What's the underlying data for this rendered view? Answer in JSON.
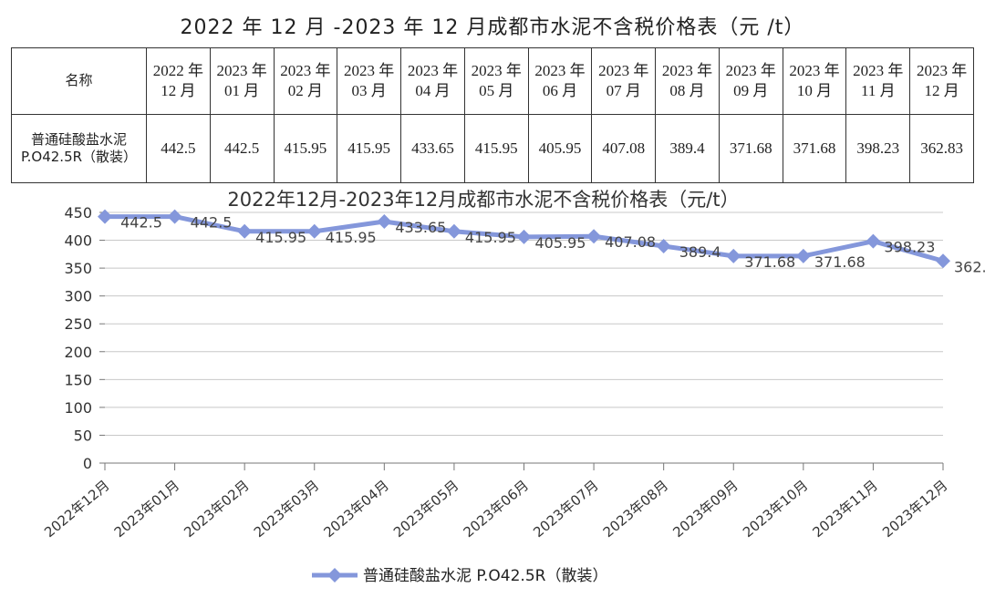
{
  "title": "2022 年 12 月 -2023 年 12 月成都市水泥不含税价格表（元 /t）",
  "table": {
    "header": [
      "名称",
      "2022 年\n12 月",
      "2023 年\n01 月",
      "2023 年\n02 月",
      "2023 年\n03 月",
      "2023 年\n04 月",
      "2023 年\n05 月",
      "2023 年\n06 月",
      "2023 年\n07 月",
      "2023 年\n08 月",
      "2023 年\n09 月",
      "2023 年\n10 月",
      "2023 年\n11 月",
      "2023 年\n12 月"
    ],
    "rows": [
      [
        "普通硅酸盐水泥\nP.O42.5R（散装）",
        "442.5",
        "442.5",
        "415.95",
        "415.95",
        "433.65",
        "415.95",
        "405.95",
        "407.08",
        "389.4",
        "371.68",
        "371.68",
        "398.23",
        "362.83"
      ]
    ]
  },
  "chart_data": {
    "type": "line",
    "title": "2022年12月-2023年12月成都市水泥不含税价格表（元/t）",
    "categories": [
      "2022年12月",
      "2023年01月",
      "2023年02月",
      "2023年03月",
      "2023年04月",
      "2023年05月",
      "2023年06月",
      "2023年07月",
      "2023年08月",
      "2023年09月",
      "2023年10月",
      "2023年11月",
      "2023年12月"
    ],
    "series": [
      {
        "name": "普通硅酸盐水泥 P.O42.5R（散装）",
        "color": "#8497db",
        "values": [
          442.5,
          442.5,
          415.95,
          415.95,
          433.65,
          415.95,
          405.95,
          407.08,
          389.4,
          371.68,
          371.68,
          398.23,
          362.83
        ]
      }
    ],
    "ylim": [
      0,
      450
    ],
    "yticks": [
      0,
      50,
      100,
      150,
      200,
      250,
      300,
      350,
      400,
      450
    ],
    "grid": true,
    "legend": "bottom"
  }
}
